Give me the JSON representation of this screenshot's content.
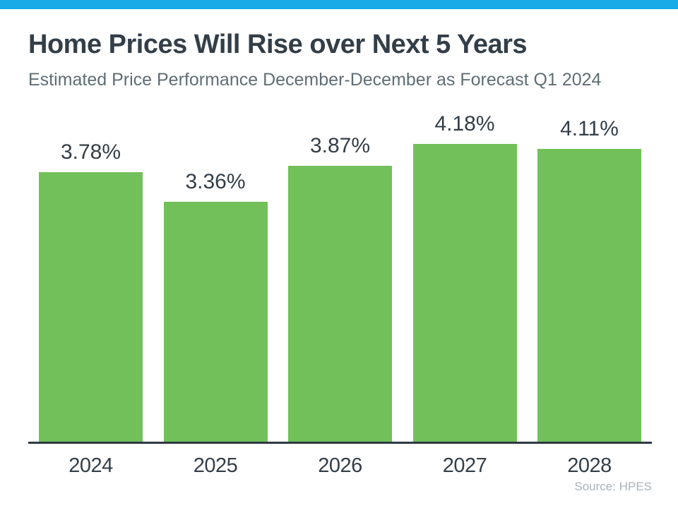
{
  "accent": {
    "top_bar_color": "#18ABE8"
  },
  "header": {
    "title": "Home Prices Will Rise over Next 5 Years",
    "subtitle": "Estimated Price Performance December-December as Forecast Q1 2024"
  },
  "chart_data": {
    "type": "bar",
    "title": "Home Prices Will Rise over Next 5 Years",
    "subtitle": "Estimated Price Performance December-December as Forecast Q1 2024",
    "categories": [
      "2024",
      "2025",
      "2026",
      "2027",
      "2028"
    ],
    "values": [
      3.78,
      3.36,
      3.87,
      4.18,
      4.11
    ],
    "value_labels": [
      "3.78%",
      "3.36%",
      "3.87%",
      "4.18%",
      "4.11%"
    ],
    "xlabel": "",
    "ylabel": "",
    "ylim": [
      0,
      4.63
    ],
    "grid": false,
    "legend": false,
    "bar_color": "#71C05A",
    "label_color": "#333E48",
    "axis_color": "#2E3941"
  },
  "footer": {
    "source": "Source: HPES"
  }
}
